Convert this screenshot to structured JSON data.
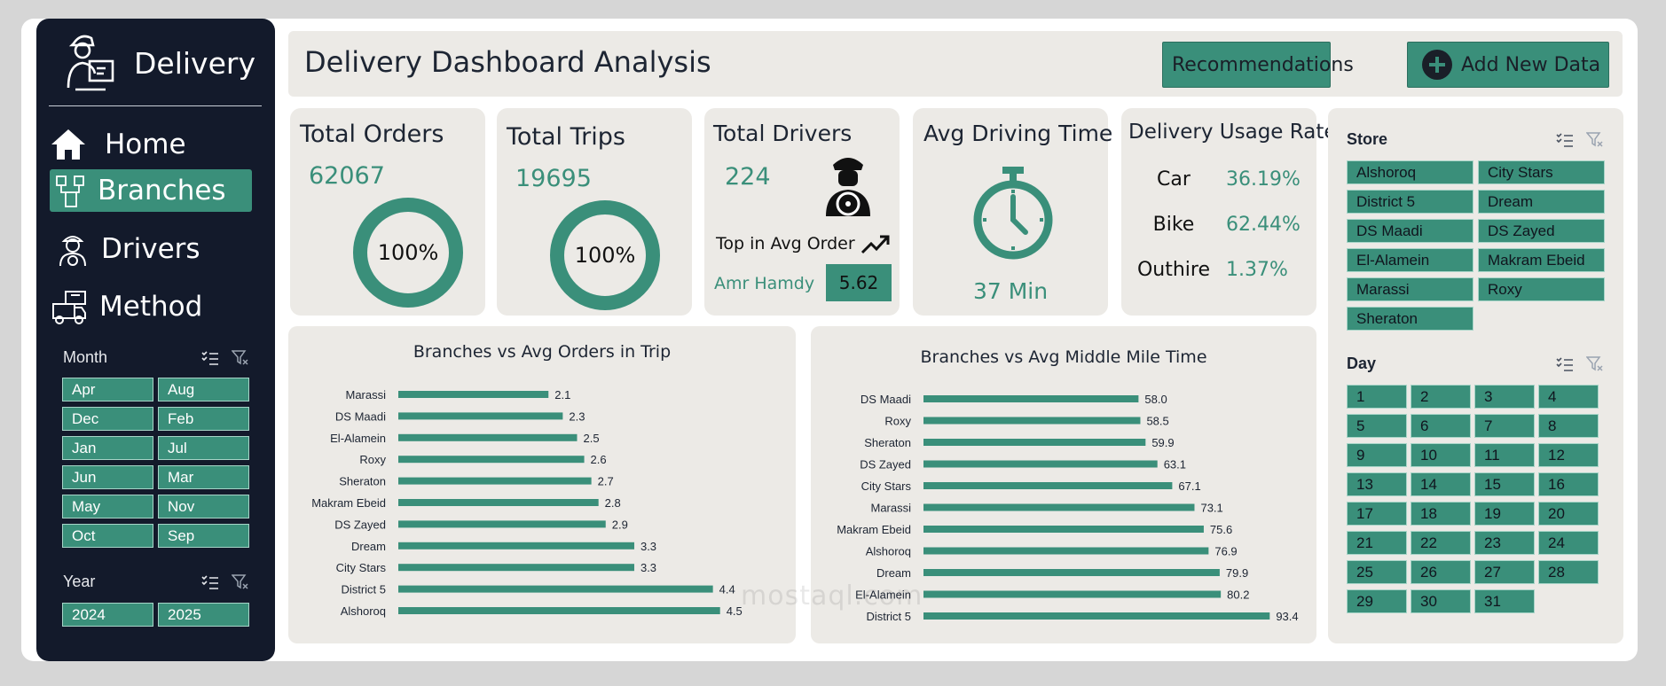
{
  "sidebar": {
    "brand": "Delivery",
    "nav": [
      {
        "label": "Home",
        "icon": "home-icon"
      },
      {
        "label": "Branches",
        "icon": "branches-icon",
        "active": true
      },
      {
        "label": "Drivers",
        "icon": "driver-icon"
      },
      {
        "label": "Method",
        "icon": "delivery-truck-icon"
      }
    ],
    "month_slicer": {
      "title": "Month",
      "items": [
        "Apr",
        "Aug",
        "Dec",
        "Feb",
        "Jan",
        "Jul",
        "Jun",
        "Mar",
        "May",
        "Nov",
        "Oct",
        "Sep"
      ]
    },
    "year_slicer": {
      "title": "Year",
      "items": [
        "2024",
        "2025"
      ]
    }
  },
  "header": {
    "title": "Delivery Dashboard Analysis",
    "recommendations_label": "Recommendations",
    "add_data_label": "Add New Data"
  },
  "cards": {
    "total_orders": {
      "title": "Total Orders",
      "value": "62067",
      "ring_label": "100%",
      "ring_fraction": 1.0
    },
    "total_trips": {
      "title": "Total Trips",
      "value": "19695",
      "ring_label": "100%",
      "ring_fraction": 1.0
    },
    "total_drivers": {
      "title": "Total Drivers",
      "value": "224",
      "top_label": "Top in Avg Order",
      "top_name": "Amr Hamdy",
      "top_value": "5.62"
    },
    "avg_driving": {
      "title": "Avg Driving Time",
      "value": "37 Min"
    },
    "usage": {
      "title": "Delivery Usage Rate",
      "rows": [
        {
          "label": "Car",
          "value": "36.19%"
        },
        {
          "label": "Bike",
          "value": "62.44%"
        },
        {
          "label": "Outhire",
          "value": "1.37%"
        }
      ]
    }
  },
  "chart_data": [
    {
      "type": "bar",
      "orientation": "horizontal",
      "title": "Branches vs Avg Orders in Trip",
      "categories": [
        "Marassi",
        "DS Maadi",
        "El-Alamein",
        "Roxy",
        "Sheraton",
        "Makram Ebeid",
        "DS Zayed",
        "Dream",
        "City Stars",
        "District 5",
        "Alshoroq"
      ],
      "values": [
        2.1,
        2.3,
        2.5,
        2.6,
        2.7,
        2.8,
        2.9,
        3.3,
        3.3,
        4.4,
        4.5
      ],
      "labels": [
        "2.1",
        "2.3",
        "2.5",
        "2.6",
        "2.7",
        "2.8",
        "2.9",
        "3.3",
        "3.3",
        "4.4",
        "4.5"
      ],
      "xlim": [
        0,
        5
      ],
      "color": "#3a8f7a",
      "grid": false
    },
    {
      "type": "bar",
      "orientation": "horizontal",
      "title": "Branches vs Avg Middle Mile Time",
      "categories": [
        "DS Maadi",
        "Roxy",
        "Sheraton",
        "DS Zayed",
        "City Stars",
        "Marassi",
        "Makram Ebeid",
        "Alshoroq",
        "Dream",
        "El-Alamein",
        "District 5"
      ],
      "values": [
        58.0,
        58.5,
        59.9,
        63.1,
        67.1,
        73.1,
        75.6,
        76.9,
        79.9,
        80.2,
        93.4
      ],
      "labels": [
        "58.0",
        "58.5",
        "59.9",
        "63.1",
        "67.1",
        "73.1",
        "75.6",
        "76.9",
        "79.9",
        "80.2",
        "93.4"
      ],
      "xlim": [
        0,
        95
      ],
      "color": "#3a8f7a",
      "grid": false
    }
  ],
  "store_slicer": {
    "title": "Store",
    "items": [
      "Alshoroq",
      "City Stars",
      "District 5",
      "Dream",
      "DS Maadi",
      "DS Zayed",
      "El-Alamein",
      "Makram Ebeid",
      "Marassi",
      "Roxy",
      "Sheraton"
    ]
  },
  "day_slicer": {
    "title": "Day",
    "items": [
      "1",
      "2",
      "3",
      "4",
      "5",
      "6",
      "7",
      "8",
      "9",
      "10",
      "11",
      "12",
      "13",
      "14",
      "15",
      "16",
      "17",
      "18",
      "19",
      "20",
      "21",
      "22",
      "23",
      "24",
      "25",
      "26",
      "27",
      "28",
      "29",
      "30",
      "31"
    ]
  },
  "watermark": "mostaql.com",
  "colors": {
    "accent": "#3a8f7a",
    "sidebar": "#131a2b",
    "card": "#eceae6"
  }
}
